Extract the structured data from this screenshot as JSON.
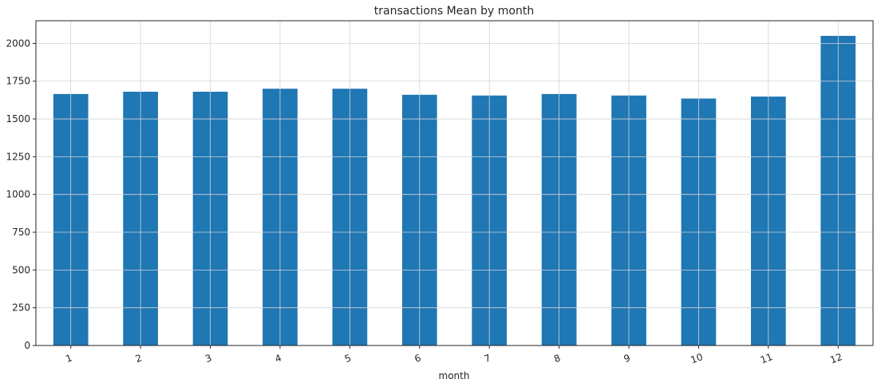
{
  "chart_data": {
    "type": "bar",
    "title": "transactions Mean by month",
    "xlabel": "month",
    "ylabel": "",
    "categories": [
      "1",
      "2",
      "3",
      "4",
      "5",
      "6",
      "7",
      "8",
      "9",
      "10",
      "11",
      "12"
    ],
    "values": [
      1665,
      1680,
      1680,
      1700,
      1700,
      1660,
      1655,
      1665,
      1655,
      1635,
      1648,
      2050
    ],
    "ylim": [
      0,
      2150
    ],
    "yticks": [
      0,
      250,
      500,
      750,
      1000,
      1250,
      1500,
      1750,
      2000
    ],
    "grid": true,
    "bar_color": "#1f77b4"
  }
}
